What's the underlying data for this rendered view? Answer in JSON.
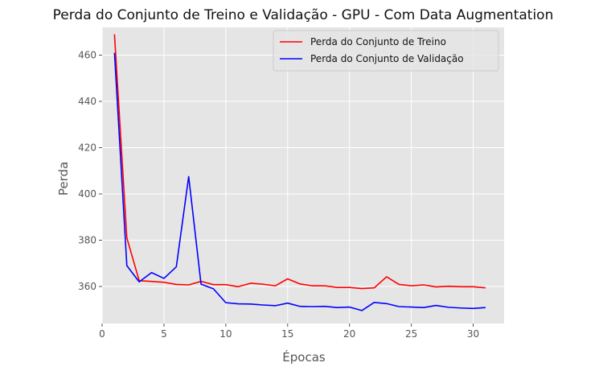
{
  "chart_data": {
    "type": "line",
    "title": "Perda do Conjunto de Treino e Validação - GPU - Com Data Augmentation",
    "xlabel": "Épocas",
    "ylabel": "Perda",
    "xlim": [
      0,
      32.5
    ],
    "ylim": [
      344,
      472
    ],
    "xticks": [
      0,
      5,
      10,
      15,
      20,
      25,
      30
    ],
    "yticks": [
      360,
      380,
      400,
      420,
      440,
      460
    ],
    "grid": true,
    "legend_position": "top-right",
    "x": [
      1,
      2,
      3,
      4,
      5,
      6,
      7,
      8,
      9,
      10,
      11,
      12,
      13,
      14,
      15,
      16,
      17,
      18,
      19,
      20,
      21,
      22,
      23,
      24,
      25,
      26,
      27,
      28,
      29,
      30,
      31
    ],
    "series": [
      {
        "name": "Perda do Conjunto de Treino",
        "color": "#ff0000",
        "values": [
          469,
          381,
          362.5,
          362.2,
          361.8,
          360.9,
          360.7,
          362.2,
          360.8,
          360.8,
          359.9,
          361.4,
          361.0,
          360.3,
          363.3,
          361.1,
          360.3,
          360.3,
          359.6,
          359.6,
          359.1,
          359.4,
          364.2,
          360.9,
          360.3,
          360.7,
          359.8,
          360.1,
          359.9,
          359.9,
          359.4
        ]
      },
      {
        "name": "Perda do Conjunto de Validação",
        "color": "#0000ff",
        "values": [
          461,
          369,
          362,
          366,
          363.5,
          368.5,
          407.5,
          361,
          359,
          353,
          352.5,
          352.4,
          352.0,
          351.7,
          352.8,
          351.4,
          351.3,
          351.4,
          350.9,
          351.1,
          349.6,
          353.1,
          352.6,
          351.3,
          351.1,
          350.9,
          351.8,
          351.0,
          350.7,
          350.5,
          350.9
        ]
      }
    ]
  },
  "colors": {
    "plot_background": "#e5e5e5",
    "grid": "#ffffff",
    "text": "#555555"
  }
}
